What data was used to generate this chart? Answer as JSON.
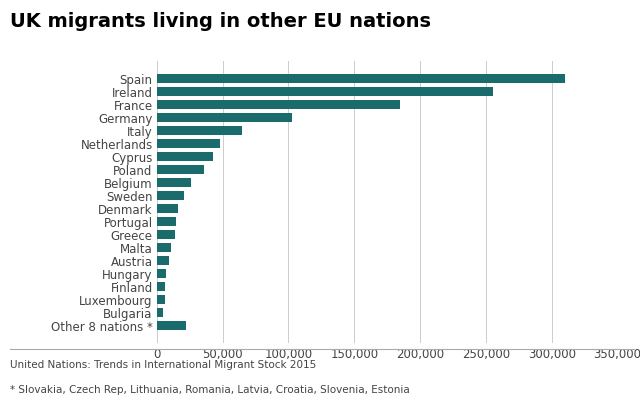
{
  "title": "UK migrants living in other EU nations",
  "categories": [
    "Other 8 nations *",
    "Bulgaria",
    "Luxembourg",
    "Finland",
    "Hungary",
    "Austria",
    "Malta",
    "Greece",
    "Portugal",
    "Denmark",
    "Sweden",
    "Belgium",
    "Poland",
    "Cyprus",
    "Netherlands",
    "Italy",
    "Germany",
    "France",
    "Ireland",
    "Spain"
  ],
  "values": [
    22000,
    5000,
    6000,
    6500,
    7000,
    9000,
    11000,
    14000,
    14500,
    16000,
    21000,
    26000,
    36000,
    43000,
    48000,
    65000,
    103000,
    185000,
    255000,
    310000
  ],
  "bar_color": "#1a6b6b",
  "xlim": [
    0,
    350000
  ],
  "xtick_values": [
    0,
    50000,
    100000,
    150000,
    200000,
    250000,
    300000,
    350000
  ],
  "source_text": "United Nations: Trends in International Migrant Stock 2015",
  "footnote_text": "* Slovakia, Czech Rep, Lithuania, Romania, Latvia, Croatia, Slovenia, Estonia",
  "background_color": "#ffffff",
  "title_fontsize": 14,
  "label_fontsize": 8.5,
  "tick_fontsize": 8.5
}
